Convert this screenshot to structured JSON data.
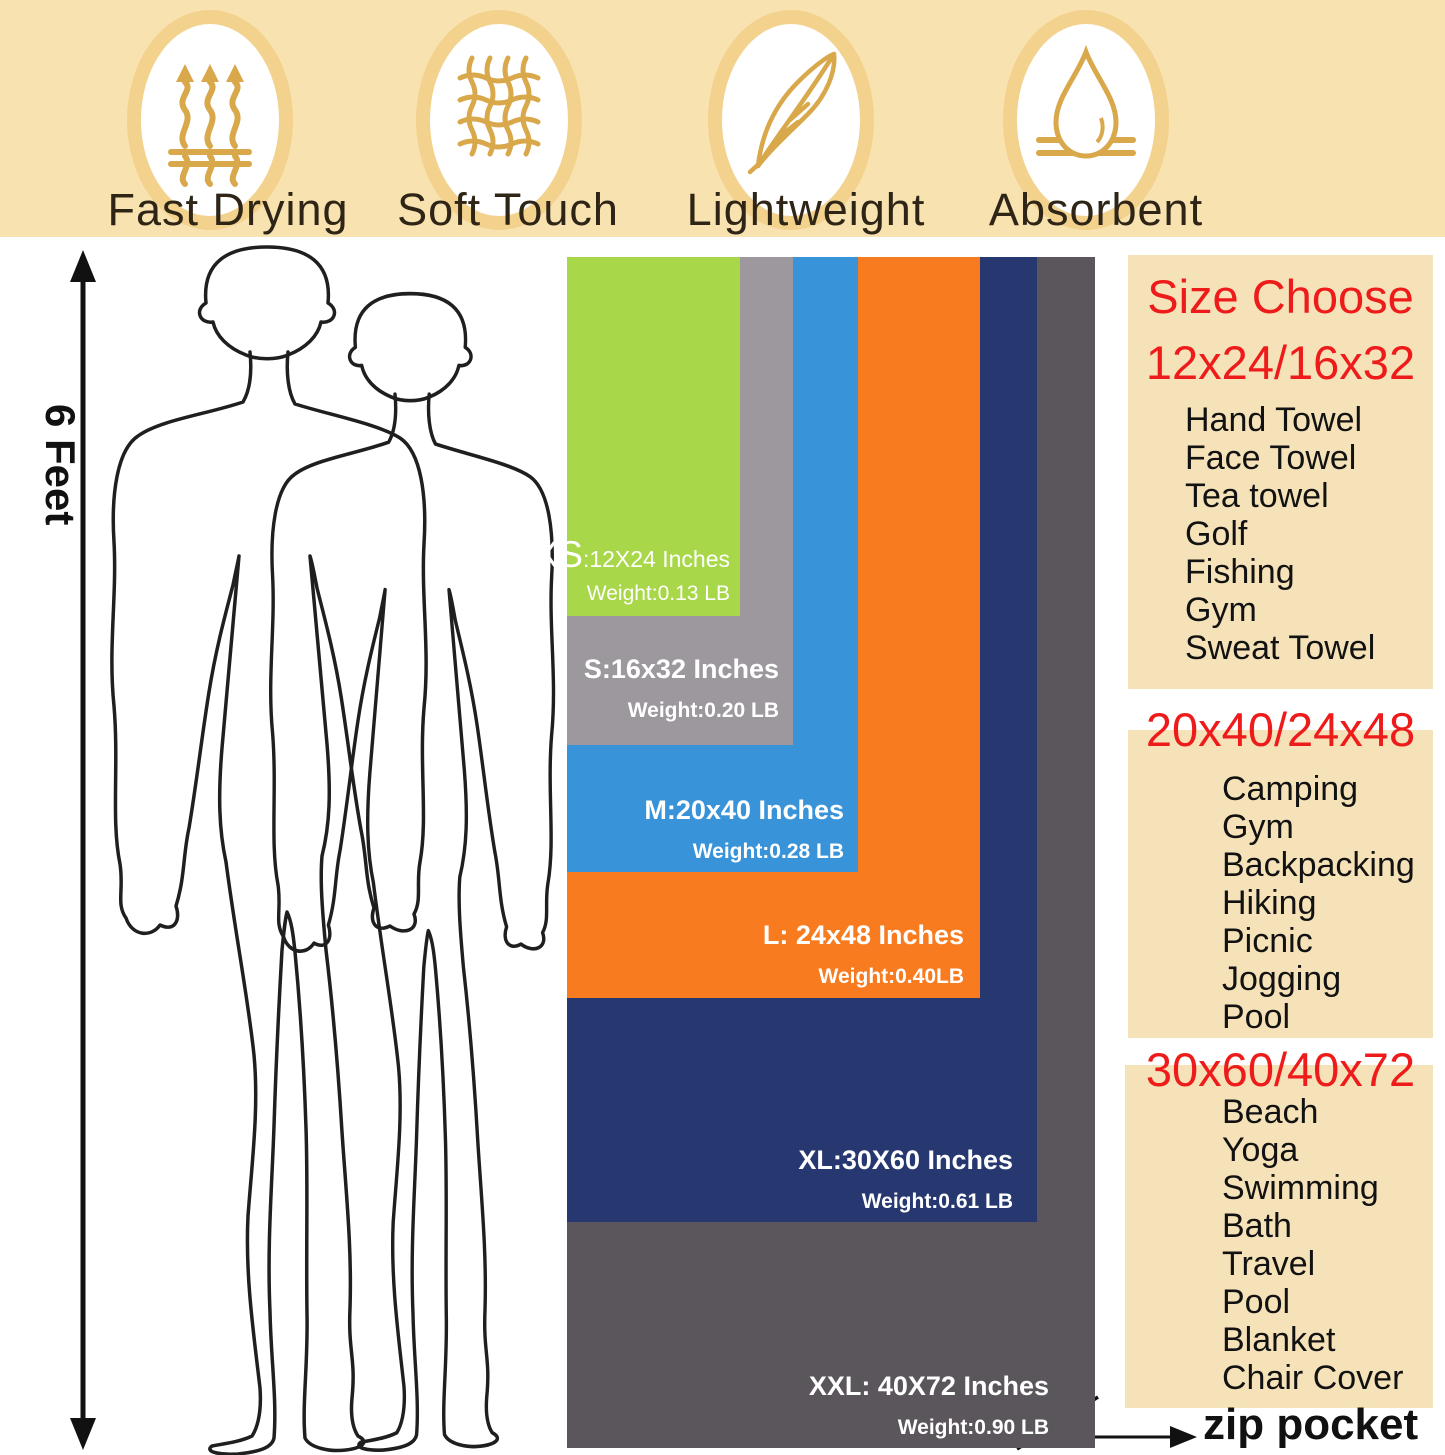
{
  "banner": {
    "bg_color": "#f8e2b0",
    "ring_color": "#f3d28e",
    "icon_color": "#d8a84b",
    "features": [
      {
        "label": "Fast Drying",
        "icon": "heat-waves-icon"
      },
      {
        "label": "Soft Touch",
        "icon": "fabric-weave-icon"
      },
      {
        "label": "Lightweight",
        "icon": "feather-icon"
      },
      {
        "label": "Absorbent",
        "icon": "water-drop-icon"
      }
    ]
  },
  "scale_figure": {
    "height_label": "6 Feet"
  },
  "sizes": [
    {
      "code": "XS",
      "size_big": "XS",
      "size_rest": ":12X24 Inches",
      "weight": "Weight:0.13 LB",
      "color": "#a8d84a"
    },
    {
      "code": "S",
      "size_big": "",
      "size_rest": "S:16x32 Inches",
      "weight": "Weight:0.20 LB",
      "color": "#9d989d"
    },
    {
      "code": "M",
      "size_big": "",
      "size_rest": "M:20x40 Inches",
      "weight": "Weight:0.28 LB",
      "color": "#3893d8"
    },
    {
      "code": "L",
      "size_big": "",
      "size_rest": "L: 24x48 Inches",
      "weight": "Weight:0.40LB",
      "color": "#f87b20"
    },
    {
      "code": "XL",
      "size_big": "",
      "size_rest": "XL:30X60 Inches",
      "weight": "Weight:0.61 LB",
      "color": "#273871"
    },
    {
      "code": "XXL",
      "size_big": "",
      "size_rest": "XXL: 40X72 Inches",
      "weight": "Weight:0.90 LB",
      "color": "#5b565c"
    }
  ],
  "right_column": {
    "panel_bg": "#f6e2b8",
    "accent_color": "#ee1b1b",
    "heading": "Size Choose",
    "groups": [
      {
        "title": "12x24/16x32",
        "items": [
          "Hand Towel",
          "Face Towel",
          "Tea towel",
          "Golf",
          "Fishing",
          "Gym",
          "Sweat Towel"
        ]
      },
      {
        "title": "20x40/24x48",
        "items": [
          "Camping",
          "Gym",
          "Backpacking",
          "Hiking",
          "Picnic",
          "Jogging",
          "Pool"
        ]
      },
      {
        "title": "30x60/40x72",
        "items": [
          "Beach",
          "Yoga",
          "Swimming",
          "Bath",
          "Travel",
          "Pool",
          "Blanket",
          "Chair Cover"
        ]
      }
    ]
  },
  "zip_pocket_label": "zip pocket"
}
